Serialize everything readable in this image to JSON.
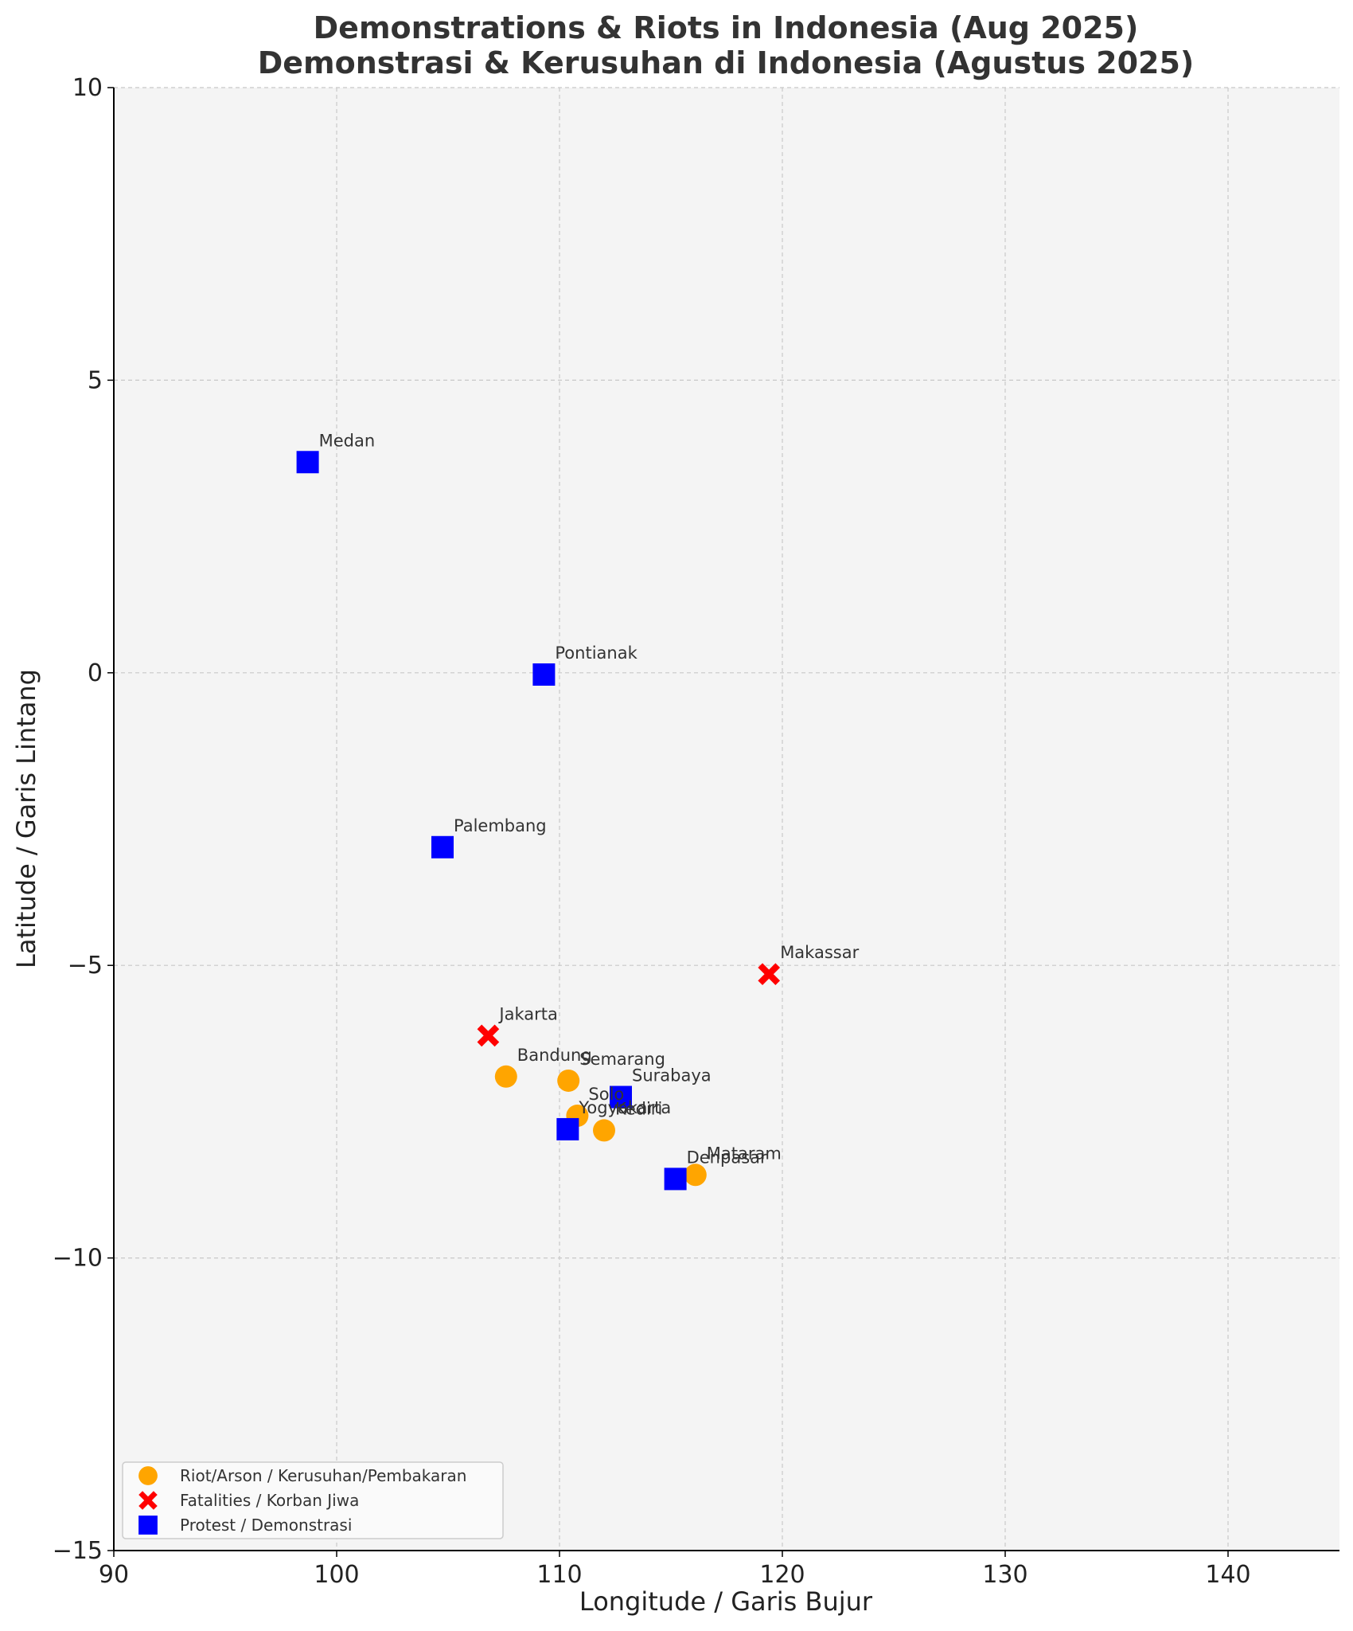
{
  "chart_data": {
    "type": "scatter",
    "title_line1": "Demonstrations & Riots in Indonesia (Aug 2025)",
    "title_line2": "Demonstrasi & Kerusuhan di Indonesia (Agustus 2025)",
    "xlabel": "Longitude / Garis Bujur",
    "ylabel": "Latitude / Garis Lintang",
    "xlim": [
      90,
      145
    ],
    "ylim": [
      -15,
      10
    ],
    "x_ticks": [
      90,
      100,
      110,
      120,
      130,
      140
    ],
    "y_ticks": [
      10,
      5,
      0,
      -5,
      -10,
      -15
    ],
    "x_tick_labels": [
      "90",
      "100",
      "110",
      "120",
      "130",
      "140"
    ],
    "y_tick_labels": [
      "10",
      "5",
      "0",
      "−5",
      "−10",
      "−15"
    ],
    "grid": true,
    "legend_position": "lower-left",
    "series": [
      {
        "key": "riot",
        "name": "Riot/Arson / Kerusuhan/Pembakaran",
        "marker": "circle",
        "color": "#FFA500",
        "points": [
          {
            "label": "Bandung",
            "lon": 107.6,
            "lat": -6.9
          },
          {
            "label": "Semarang",
            "lon": 110.4,
            "lat": -6.97
          },
          {
            "label": "Solo",
            "lon": 110.8,
            "lat": -7.57
          },
          {
            "label": "Kediri",
            "lon": 112.0,
            "lat": -7.82
          },
          {
            "label": "Mataram",
            "lon": 116.1,
            "lat": -8.58
          }
        ]
      },
      {
        "key": "fatal",
        "name": "Fatalities / Korban Jiwa",
        "marker": "x",
        "color": "#FF0000",
        "points": [
          {
            "label": "Jakarta",
            "lon": 106.8,
            "lat": -6.2
          },
          {
            "label": "Makassar",
            "lon": 119.4,
            "lat": -5.15
          }
        ]
      },
      {
        "key": "protest",
        "name": "Protest / Demonstrasi",
        "marker": "square",
        "color": "#0000FF",
        "points": [
          {
            "label": "Medan",
            "lon": 98.7,
            "lat": 3.6
          },
          {
            "label": "Pontianak",
            "lon": 109.3,
            "lat": -0.03
          },
          {
            "label": "Palembang",
            "lon": 104.75,
            "lat": -2.98
          },
          {
            "label": "Surabaya",
            "lon": 112.75,
            "lat": -7.25
          },
          {
            "label": "Yogyakarta",
            "lon": 110.37,
            "lat": -7.8
          },
          {
            "label": "Denpasar",
            "lon": 115.2,
            "lat": -8.65
          }
        ]
      }
    ]
  }
}
